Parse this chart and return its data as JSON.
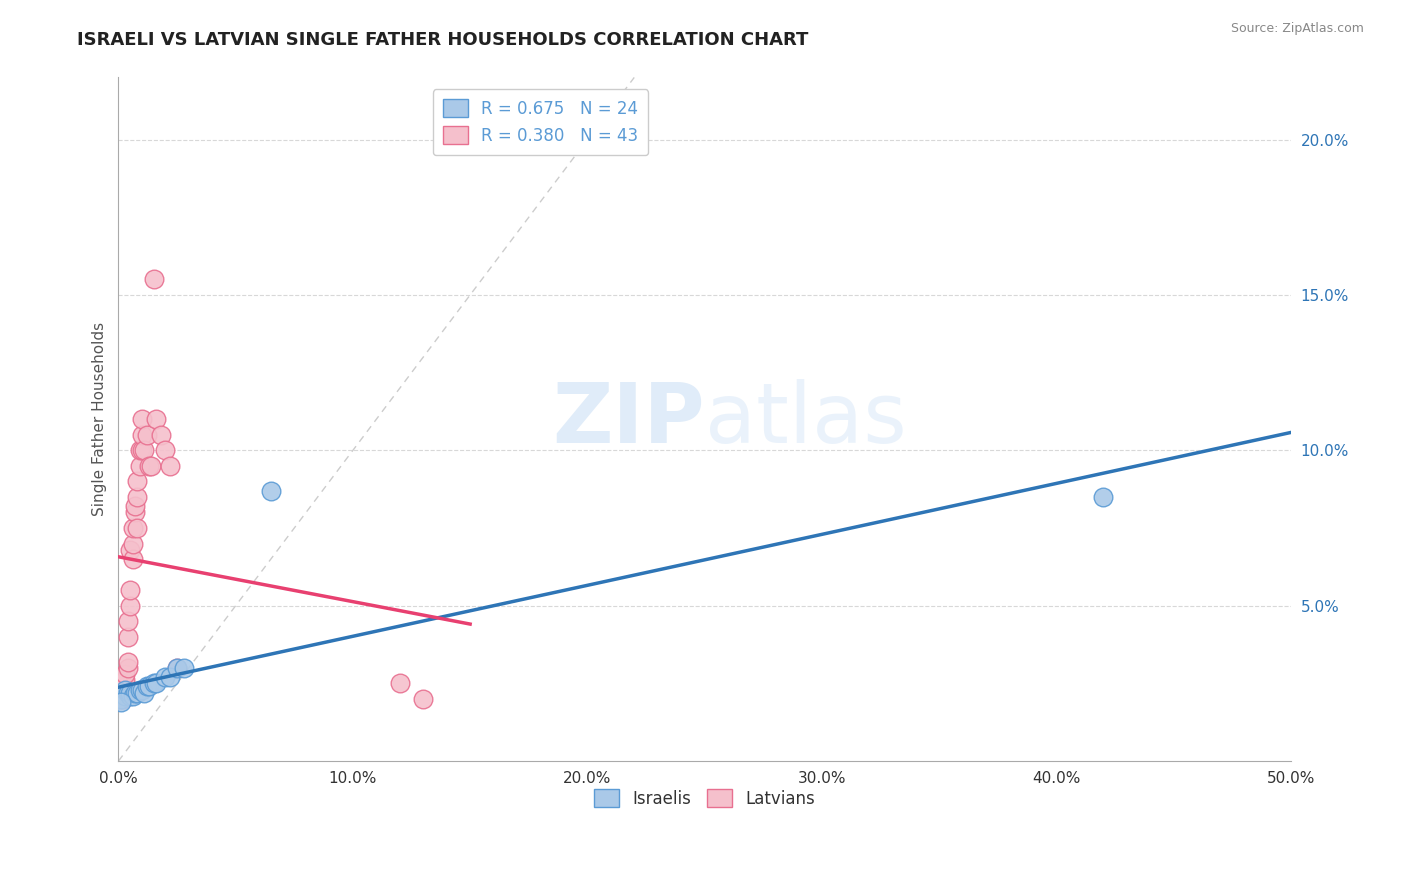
{
  "title": "ISRAELI VS LATVIAN SINGLE FATHER HOUSEHOLDS CORRELATION CHART",
  "source_text": "Source: ZipAtlas.com",
  "ylabel": "Single Father Households",
  "xlim": [
    0.0,
    0.5
  ],
  "ylim": [
    0.0,
    0.22
  ],
  "xticks": [
    0.0,
    0.1,
    0.2,
    0.3,
    0.4,
    0.5
  ],
  "xticklabels": [
    "0.0%",
    "10.0%",
    "20.0%",
    "30.0%",
    "40.0%",
    "50.0%"
  ],
  "yticks": [
    0.05,
    0.1,
    0.15,
    0.2
  ],
  "yticklabels": [
    "5.0%",
    "10.0%",
    "15.0%",
    "20.0%"
  ],
  "watermark_zip": "ZIP",
  "watermark_atlas": "atlas",
  "israelis_color": "#aac9e8",
  "israelis_edge_color": "#5b9bd5",
  "latvians_color": "#f5c0cc",
  "latvians_edge_color": "#e87090",
  "israelis_trend_color": "#2e75b6",
  "latvians_trend_color": "#e84070",
  "grid_color": "#d8d8d8",
  "background_color": "#ffffff",
  "diag_color": "#cccccc",
  "legend1_text1": "R = 0.675   N = 24",
  "legend1_text2": "R = 0.380   N = 43",
  "legend1_color1": "#5b9bd5",
  "legend1_color2": "#e87090",
  "legend1_face1": "#aac9e8",
  "legend1_face2": "#f5c0cc",
  "israelis_x": [
    0.001,
    0.002,
    0.003,
    0.003,
    0.004,
    0.005,
    0.005,
    0.006,
    0.007,
    0.008,
    0.009,
    0.01,
    0.011,
    0.012,
    0.013,
    0.015,
    0.016,
    0.02,
    0.022,
    0.025,
    0.028,
    0.065,
    0.42,
    0.001
  ],
  "israelis_y": [
    0.02,
    0.022,
    0.021,
    0.023,
    0.022,
    0.021,
    0.022,
    0.021,
    0.022,
    0.022,
    0.023,
    0.023,
    0.022,
    0.024,
    0.024,
    0.025,
    0.025,
    0.027,
    0.027,
    0.03,
    0.03,
    0.087,
    0.085,
    0.019
  ],
  "latvians_x": [
    0.001,
    0.001,
    0.001,
    0.002,
    0.002,
    0.002,
    0.002,
    0.003,
    0.003,
    0.003,
    0.003,
    0.004,
    0.004,
    0.004,
    0.004,
    0.005,
    0.005,
    0.005,
    0.006,
    0.006,
    0.006,
    0.007,
    0.007,
    0.008,
    0.008,
    0.008,
    0.009,
    0.009,
    0.01,
    0.01,
    0.01,
    0.011,
    0.012,
    0.013,
    0.014,
    0.015,
    0.016,
    0.018,
    0.02,
    0.022,
    0.025,
    0.12,
    0.13
  ],
  "latvians_y": [
    0.02,
    0.022,
    0.024,
    0.02,
    0.022,
    0.024,
    0.025,
    0.022,
    0.024,
    0.026,
    0.028,
    0.03,
    0.032,
    0.04,
    0.045,
    0.05,
    0.055,
    0.068,
    0.065,
    0.07,
    0.075,
    0.08,
    0.082,
    0.075,
    0.085,
    0.09,
    0.095,
    0.1,
    0.1,
    0.105,
    0.11,
    0.1,
    0.105,
    0.095,
    0.095,
    0.155,
    0.11,
    0.105,
    0.1,
    0.095,
    0.03,
    0.025,
    0.02
  ]
}
